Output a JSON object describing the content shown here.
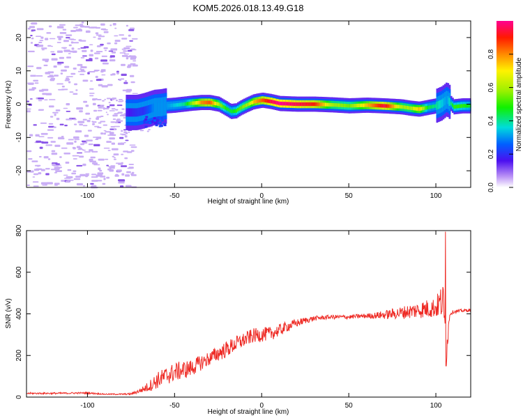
{
  "title": "KOM5.2026.018.13.49.G18",
  "colors": {
    "snr_line": "#ee2a24",
    "axis": "#000000",
    "speckle": "#c9aef5",
    "speckle_dark": "#8a55e8"
  },
  "chart_data": [
    {
      "type": "heatmap",
      "xlabel": "Height of straight line (km)",
      "ylabel": "Frequency (Hz)",
      "xlim": [
        -135,
        120
      ],
      "ylim": [
        -25,
        25
      ],
      "xticks": [
        -100,
        -50,
        0,
        50,
        100
      ],
      "yticks": [
        -20,
        -10,
        0,
        10,
        20
      ],
      "grid": false,
      "colorbar": {
        "label": "Normalized spectral amplitude",
        "range": [
          0,
          1
        ],
        "ticks": [
          0.0,
          0.2,
          0.4,
          0.6,
          0.8
        ],
        "tick_labels": [
          "0.0",
          "0.2",
          "0.4",
          "0.6",
          "0.8"
        ],
        "colormap": "rainbow (violet to red to magenta)"
      },
      "trace": {
        "description": "frequency of the spectral ridge vs height; low-amplitude noise speckle below -75 km",
        "height": [
          -78,
          -72,
          -68,
          -65,
          -62,
          -58,
          -55,
          -50,
          -45,
          -40,
          -35,
          -30,
          -25,
          -20,
          -18,
          -15,
          -12,
          -8,
          -5,
          0,
          5,
          10,
          20,
          30,
          40,
          50,
          60,
          70,
          80,
          85,
          90,
          95,
          100,
          103,
          106,
          110,
          115,
          120
        ],
        "frequency": [
          -2.5,
          -2.5,
          -2.0,
          -1.5,
          -1.0,
          -0.8,
          -0.5,
          -0.3,
          0.0,
          0.3,
          0.5,
          0.5,
          0.0,
          -1.5,
          -2.2,
          -2.0,
          -1.0,
          0.0,
          0.7,
          1.2,
          0.8,
          0.2,
          0.0,
          0.0,
          -0.2,
          -0.5,
          -0.3,
          -0.5,
          -0.8,
          -1.2,
          -1.5,
          -1.0,
          -0.5,
          0.2,
          1.5,
          -0.8,
          -0.5,
          -0.5
        ],
        "amplitude": [
          0.15,
          0.2,
          0.2,
          0.25,
          0.3,
          0.3,
          0.3,
          0.35,
          0.4,
          0.6,
          0.8,
          0.85,
          0.6,
          0.45,
          0.45,
          0.5,
          0.55,
          0.6,
          0.75,
          0.85,
          0.95,
          1.0,
          0.95,
          0.9,
          0.6,
          0.55,
          0.75,
          0.95,
          0.6,
          0.6,
          0.75,
          0.45,
          0.4,
          0.35,
          0.3,
          0.5,
          0.5,
          0.45
        ]
      }
    },
    {
      "type": "line",
      "xlabel": "Height of straight line (km)",
      "ylabel": "SNR (v/v)",
      "xlim": [
        -135,
        120
      ],
      "ylim": [
        0,
        800
      ],
      "xticks": [
        -100,
        -50,
        0,
        50,
        100
      ],
      "yticks": [
        0,
        200,
        400,
        600,
        800
      ],
      "grid": false,
      "series": [
        {
          "name": "SNR",
          "x": [
            -135,
            -120,
            -100,
            -90,
            -80,
            -75,
            -70,
            -65,
            -60,
            -55,
            -50,
            -45,
            -40,
            -35,
            -30,
            -25,
            -20,
            -15,
            -10,
            -5,
            0,
            5,
            10,
            15,
            20,
            25,
            30,
            35,
            40,
            45,
            50,
            55,
            60,
            65,
            70,
            75,
            80,
            85,
            90,
            95,
            100,
            102,
            104,
            105,
            106,
            108,
            110,
            115,
            120
          ],
          "y": [
            18,
            18,
            20,
            14,
            14,
            15,
            30,
            50,
            80,
            100,
            120,
            130,
            140,
            165,
            185,
            210,
            230,
            255,
            275,
            295,
            300,
            305,
            320,
            340,
            355,
            368,
            378,
            382,
            385,
            385,
            385,
            388,
            390,
            392,
            395,
            400,
            405,
            412,
            418,
            425,
            430,
            450,
            460,
            350,
            220,
            400,
            410,
            415,
            418
          ],
          "noise": [
            4,
            4,
            4,
            3,
            3,
            5,
            10,
            25,
            40,
            45,
            45,
            45,
            40,
            38,
            35,
            38,
            40,
            38,
            35,
            35,
            35,
            33,
            30,
            25,
            20,
            15,
            12,
            10,
            10,
            10,
            10,
            10,
            12,
            15,
            20,
            25,
            30,
            35,
            40,
            45,
            50,
            70,
            90,
            150,
            80,
            10,
            8,
            8,
            8
          ]
        }
      ],
      "annotations": [
        {
          "x": 105.5,
          "y": 790,
          "text": ""
        },
        {
          "x": 105.8,
          "y": 150,
          "text": ""
        }
      ]
    }
  ]
}
